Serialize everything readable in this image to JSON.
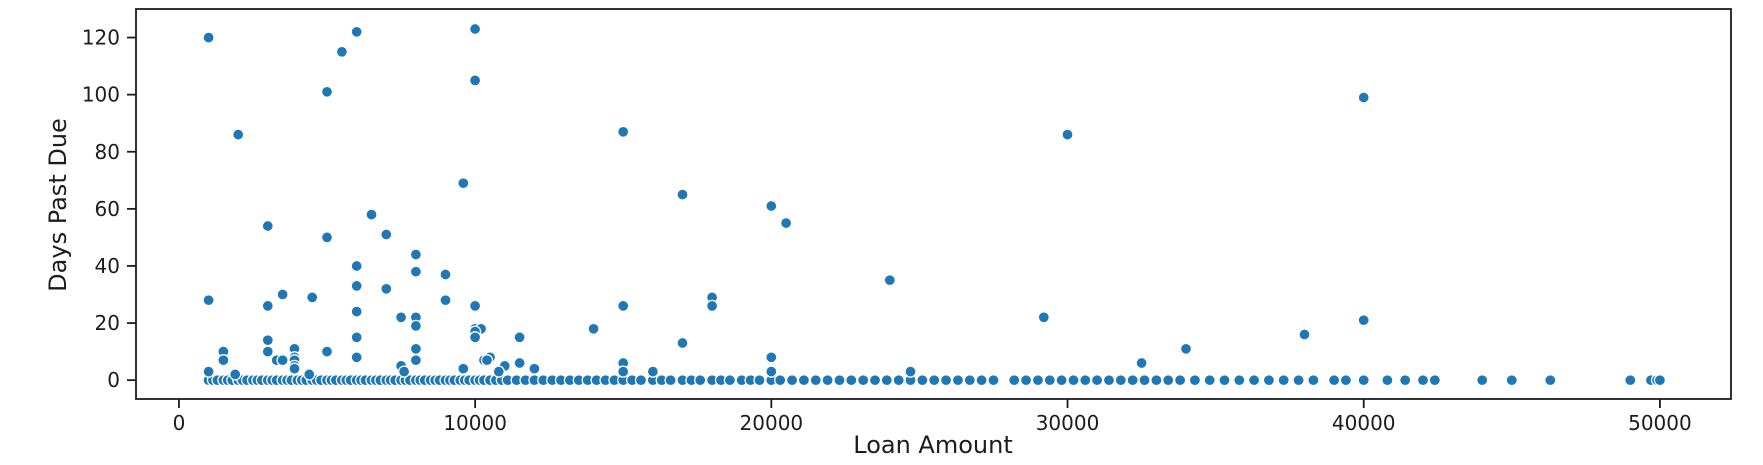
{
  "figure": {
    "background_color": "#ffffff",
    "spine_color": "#1c1c1c",
    "text_color": "#1c1c1c"
  },
  "chart_data": {
    "type": "scatter",
    "title": "",
    "xlabel": "Loan Amount",
    "ylabel": "Days Past Due",
    "x_ticks": [
      0,
      10000,
      20000,
      30000,
      40000,
      50000
    ],
    "y_ticks": [
      0,
      20,
      40,
      60,
      80,
      100,
      120
    ],
    "xlim": [
      -1450,
      52400
    ],
    "ylim": [
      -6.6,
      130
    ],
    "grid": false,
    "legend": null,
    "marker": {
      "color": "#1f77b4",
      "edge_color": "#ffffff",
      "radius": 5.5,
      "edge_width": 1.3
    },
    "points": [
      [
        1000,
        120
      ],
      [
        6000,
        122
      ],
      [
        10000,
        123
      ],
      [
        5500,
        115
      ],
      [
        5000,
        101
      ],
      [
        10000,
        105
      ],
      [
        40000,
        99
      ],
      [
        15000,
        87
      ],
      [
        2000,
        86
      ],
      [
        30000,
        86
      ],
      [
        9600,
        69
      ],
      [
        17000,
        65
      ],
      [
        20000,
        61
      ],
      [
        6500,
        58
      ],
      [
        20500,
        55
      ],
      [
        3000,
        54
      ],
      [
        7000,
        51
      ],
      [
        5000,
        50
      ],
      [
        8000,
        44
      ],
      [
        6000,
        40
      ],
      [
        8000,
        38
      ],
      [
        9000,
        37
      ],
      [
        24000,
        35
      ],
      [
        6000,
        33
      ],
      [
        7000,
        32
      ],
      [
        3500,
        30
      ],
      [
        4500,
        29
      ],
      [
        18000,
        29
      ],
      [
        1000,
        28
      ],
      [
        9000,
        28
      ],
      [
        3000,
        26
      ],
      [
        18000,
        26
      ],
      [
        15000,
        26
      ],
      [
        10000,
        26
      ],
      [
        6000,
        24
      ],
      [
        7500,
        22
      ],
      [
        8000,
        22
      ],
      [
        29200,
        22
      ],
      [
        40000,
        21
      ],
      [
        8000,
        19
      ],
      [
        10000,
        18
      ],
      [
        10200,
        18
      ],
      [
        14000,
        18
      ],
      [
        10000,
        17
      ],
      [
        38000,
        16
      ],
      [
        11500,
        15
      ],
      [
        6000,
        15
      ],
      [
        10000,
        15
      ],
      [
        3000,
        14
      ],
      [
        17000,
        13
      ],
      [
        34000,
        11
      ],
      [
        3900,
        11
      ],
      [
        8000,
        11
      ],
      [
        1500,
        10
      ],
      [
        3000,
        10
      ],
      [
        5000,
        10
      ],
      [
        3900,
        8
      ],
      [
        6000,
        8
      ],
      [
        10500,
        8
      ],
      [
        20000,
        8
      ],
      [
        1500,
        7
      ],
      [
        3300,
        7
      ],
      [
        3500,
        7
      ],
      [
        3900,
        7
      ],
      [
        8000,
        7
      ],
      [
        10300,
        7
      ],
      [
        10400,
        7
      ],
      [
        11500,
        6
      ],
      [
        15000,
        6
      ],
      [
        32500,
        6
      ],
      [
        3900,
        5
      ],
      [
        7500,
        5
      ],
      [
        11000,
        5
      ],
      [
        3900,
        4
      ],
      [
        9600,
        4
      ],
      [
        12000,
        4
      ],
      [
        1000,
        3
      ],
      [
        7600,
        3
      ],
      [
        10800,
        3
      ],
      [
        15000,
        3
      ],
      [
        16000,
        3
      ],
      [
        20000,
        3
      ],
      [
        24700,
        3
      ],
      [
        1900,
        2
      ],
      [
        4400,
        2
      ]
    ],
    "baseline_points_y0": [
      1000,
      1150,
      1300,
      1500,
      1650,
      1800,
      2000,
      2150,
      2300,
      2500,
      2650,
      2800,
      3000,
      3150,
      3300,
      3500,
      3650,
      3800,
      4000,
      4150,
      4300,
      4500,
      4650,
      4800,
      5000,
      5150,
      5300,
      5500,
      5650,
      5800,
      6000,
      6150,
      6300,
      6500,
      6650,
      6800,
      7000,
      7150,
      7300,
      7500,
      7650,
      7800,
      8000,
      8150,
      8300,
      8500,
      8650,
      8800,
      9000,
      9150,
      9300,
      9500,
      9650,
      9800,
      10000,
      10150,
      10300,
      10500,
      10700,
      10900,
      11100,
      11400,
      11700,
      12000,
      12300,
      12600,
      12900,
      13200,
      13500,
      13800,
      14100,
      14400,
      14700,
      15000,
      15300,
      15600,
      16000,
      16300,
      16600,
      17000,
      17300,
      17600,
      18000,
      18300,
      18600,
      19000,
      19300,
      19600,
      20000,
      20300,
      20700,
      21100,
      21500,
      21900,
      22300,
      22700,
      23100,
      23500,
      23900,
      24300,
      24700,
      25100,
      25500,
      25900,
      26300,
      26700,
      27100,
      27500,
      28200,
      28600,
      29000,
      29400,
      29800,
      30200,
      30600,
      31000,
      31400,
      31800,
      32200,
      32600,
      33000,
      33400,
      33800,
      34300,
      34800,
      35300,
      35800,
      36300,
      36800,
      37300,
      37800,
      38300,
      39000,
      39400,
      40000,
      40800,
      41400,
      42000,
      42400,
      44000,
      45000,
      46300,
      49000,
      49700,
      49900,
      50000
    ]
  }
}
